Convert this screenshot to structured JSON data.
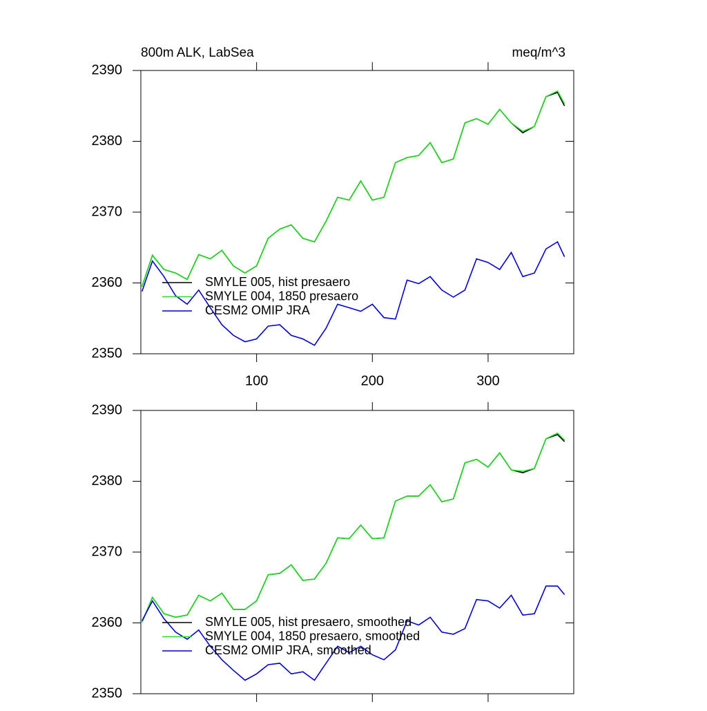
{
  "chart_data": [
    {
      "type": "line",
      "title": "800m ALK, LabSea",
      "units": "meq/m^3",
      "legend": "lower left",
      "x": [
        1,
        10,
        20,
        30,
        40,
        50,
        60,
        70,
        80,
        90,
        100,
        110,
        120,
        130,
        140,
        150,
        160,
        170,
        180,
        190,
        200,
        210,
        220,
        230,
        240,
        250,
        260,
        270,
        280,
        290,
        300,
        310,
        320,
        330,
        340,
        350,
        360,
        366
      ],
      "xlim": [
        0,
        374
      ],
      "xticks": [
        100,
        200,
        300
      ],
      "ylim": [
        2350,
        2390
      ],
      "yticks": [
        2350,
        2360,
        2370,
        2380,
        2390
      ],
      "series": [
        {
          "name": "SMYLE 005, hist presaero",
          "color": "#000000",
          "values": [
            2359.5,
            2363.9,
            2361.9,
            2361.4,
            2360.5,
            2364.0,
            2363.4,
            2364.6,
            2362.4,
            2361.4,
            2362.4,
            2366.3,
            2367.6,
            2368.2,
            2366.3,
            2365.8,
            2368.7,
            2372.1,
            2371.7,
            2374.4,
            2371.7,
            2372.1,
            2377.0,
            2377.7,
            2378.0,
            2379.8,
            2377.0,
            2377.5,
            2382.6,
            2383.2,
            2382.4,
            2384.5,
            2382.6,
            2381.2,
            2382.1,
            2386.3,
            2386.9,
            2385.0
          ]
        },
        {
          "name": "SMYLE 004, 1850 presaero",
          "color": "#22dd22",
          "values": [
            2359.5,
            2363.9,
            2361.9,
            2361.4,
            2360.5,
            2364.0,
            2363.4,
            2364.6,
            2362.4,
            2361.4,
            2362.4,
            2366.3,
            2367.6,
            2368.2,
            2366.3,
            2365.8,
            2368.7,
            2372.1,
            2371.7,
            2374.4,
            2371.7,
            2372.1,
            2377.0,
            2377.7,
            2378.0,
            2379.8,
            2377.0,
            2377.5,
            2382.6,
            2383.2,
            2382.4,
            2384.5,
            2382.6,
            2381.4,
            2382.1,
            2386.3,
            2387.1,
            2385.3
          ]
        },
        {
          "name": "CESM2 OMIP JRA",
          "color": "#0000cc",
          "values": [
            2358.8,
            2363.1,
            2360.9,
            2358.2,
            2357.0,
            2359.0,
            2356.5,
            2354.1,
            2352.6,
            2351.7,
            2352.1,
            2353.9,
            2354.1,
            2352.6,
            2352.1,
            2351.2,
            2353.6,
            2357.0,
            2356.5,
            2356.0,
            2357.0,
            2355.1,
            2354.9,
            2360.4,
            2359.9,
            2360.9,
            2359.0,
            2358.0,
            2359.0,
            2363.4,
            2362.9,
            2361.9,
            2364.3,
            2360.9,
            2361.4,
            2364.8,
            2365.8,
            2363.7
          ]
        }
      ]
    },
    {
      "type": "line",
      "legend": "lower left",
      "x": [
        1,
        10,
        20,
        30,
        40,
        50,
        60,
        70,
        80,
        90,
        100,
        110,
        120,
        130,
        140,
        150,
        160,
        170,
        180,
        190,
        200,
        210,
        220,
        230,
        240,
        250,
        260,
        270,
        280,
        290,
        300,
        310,
        320,
        330,
        340,
        350,
        360,
        366
      ],
      "xlim": [
        0,
        374
      ],
      "xticks": [
        100,
        200,
        300
      ],
      "ylim": [
        2350,
        2390
      ],
      "yticks": [
        2350,
        2360,
        2370,
        2380,
        2390
      ],
      "series": [
        {
          "name": "SMYLE 005, hist presaero, smoothed",
          "color": "#000000",
          "values": [
            2360.1,
            2363.6,
            2361.3,
            2360.8,
            2361.1,
            2363.9,
            2363.1,
            2364.2,
            2361.9,
            2361.9,
            2363.1,
            2366.8,
            2367.0,
            2368.2,
            2366.0,
            2366.2,
            2368.4,
            2372.0,
            2371.9,
            2373.8,
            2371.9,
            2372.0,
            2377.2,
            2377.9,
            2377.9,
            2379.5,
            2377.1,
            2377.5,
            2382.6,
            2383.1,
            2382.0,
            2384.0,
            2381.6,
            2381.2,
            2381.8,
            2386.0,
            2386.6,
            2385.6
          ]
        },
        {
          "name": "SMYLE 004, 1850 presaero, smoothed",
          "color": "#22dd22",
          "values": [
            2360.1,
            2363.6,
            2361.3,
            2360.8,
            2361.1,
            2363.9,
            2363.1,
            2364.2,
            2361.9,
            2361.9,
            2363.1,
            2366.8,
            2367.0,
            2368.2,
            2366.0,
            2366.2,
            2368.4,
            2372.0,
            2371.9,
            2373.8,
            2371.9,
            2372.0,
            2377.2,
            2377.9,
            2377.9,
            2379.5,
            2377.1,
            2377.5,
            2382.6,
            2383.1,
            2382.0,
            2384.0,
            2381.6,
            2381.4,
            2381.8,
            2386.0,
            2386.8,
            2385.8
          ]
        },
        {
          "name": "CESM2 OMIP JRA, smoothed",
          "color": "#0000cc",
          "values": [
            2360.3,
            2363.1,
            2360.6,
            2358.7,
            2357.7,
            2359.0,
            2356.7,
            2354.8,
            2353.3,
            2351.9,
            2352.8,
            2354.1,
            2354.3,
            2352.8,
            2353.1,
            2351.9,
            2354.3,
            2356.7,
            2355.8,
            2356.7,
            2355.5,
            2354.8,
            2356.2,
            2360.3,
            2359.7,
            2360.8,
            2358.7,
            2358.4,
            2359.2,
            2363.3,
            2363.1,
            2362.1,
            2363.9,
            2361.1,
            2361.3,
            2365.2,
            2365.2,
            2364.0
          ]
        }
      ]
    }
  ]
}
